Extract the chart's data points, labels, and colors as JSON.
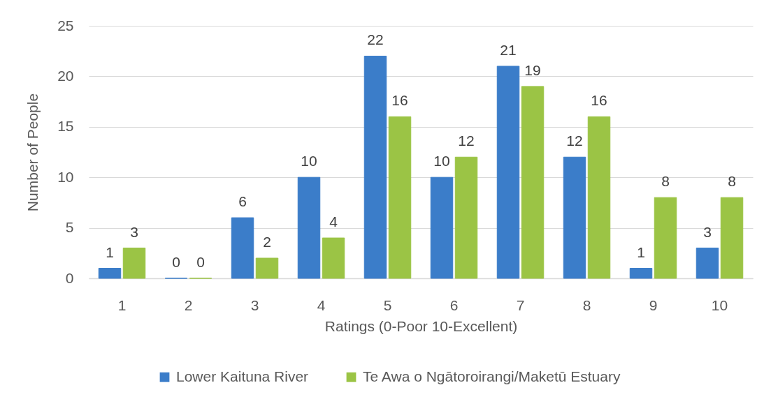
{
  "chart_data": {
    "type": "bar",
    "xlabel": "Ratings (0-Poor 10-Excellent)",
    "ylabel": "Number of People",
    "categories": [
      "1",
      "2",
      "3",
      "4",
      "5",
      "6",
      "7",
      "8",
      "9",
      "10"
    ],
    "series": [
      {
        "name": "Lower Kaituna River",
        "color": "#3b7dc9",
        "values": [
          1,
          0,
          6,
          10,
          22,
          10,
          21,
          12,
          1,
          3
        ]
      },
      {
        "name": "Te Awa o Ngātoroirangi/Maketū Estuary",
        "color": "#9bc445",
        "values": [
          3,
          0,
          2,
          4,
          16,
          12,
          19,
          16,
          8,
          8
        ]
      }
    ],
    "ylim": [
      0,
      25
    ],
    "yticks": [
      0,
      5,
      10,
      15,
      20,
      25
    ],
    "grid": "y",
    "legend": "bottom",
    "data_labels": true
  }
}
